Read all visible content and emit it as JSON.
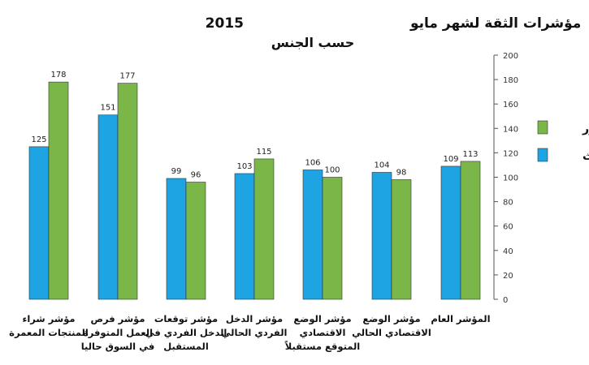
{
  "chart_data": {
    "type": "bar",
    "title": "مؤشرات الثقة لشهر مايو",
    "title_year": "2015",
    "subtitle": "حسب الجنس",
    "xlabel": "",
    "ylabel": "",
    "ylim": [
      0,
      200
    ],
    "yticks": [
      0,
      20,
      40,
      60,
      80,
      100,
      120,
      140,
      160,
      180,
      200
    ],
    "grid": false,
    "legend_position": "right",
    "categories": [
      [
        "المؤشر العام"
      ],
      [
        "مؤشر الوضع",
        "الاقتصادي الحالي"
      ],
      [
        "مؤشر الوضع",
        "الاقتصادي",
        "المتوقع مستقبلاً"
      ],
      [
        "مؤشر الدخل",
        "الفردي الحالي"
      ],
      [
        "مؤشر توقعات",
        "الدخل الفردي في",
        "المستقبل"
      ],
      [
        "مؤشر فرص",
        "العمل المتوفرة",
        "في السوق حاليا"
      ],
      [
        "مؤشر شراء",
        "المنتجات المعمرة"
      ]
    ],
    "series": [
      {
        "name": "إناث",
        "color": "#1ea3e3",
        "values": [
          109,
          104,
          106,
          103,
          99,
          151,
          125
        ]
      },
      {
        "name": "ذكور",
        "color": "#7ab648",
        "values": [
          113,
          98,
          100,
          115,
          96,
          177,
          178
        ]
      }
    ]
  }
}
